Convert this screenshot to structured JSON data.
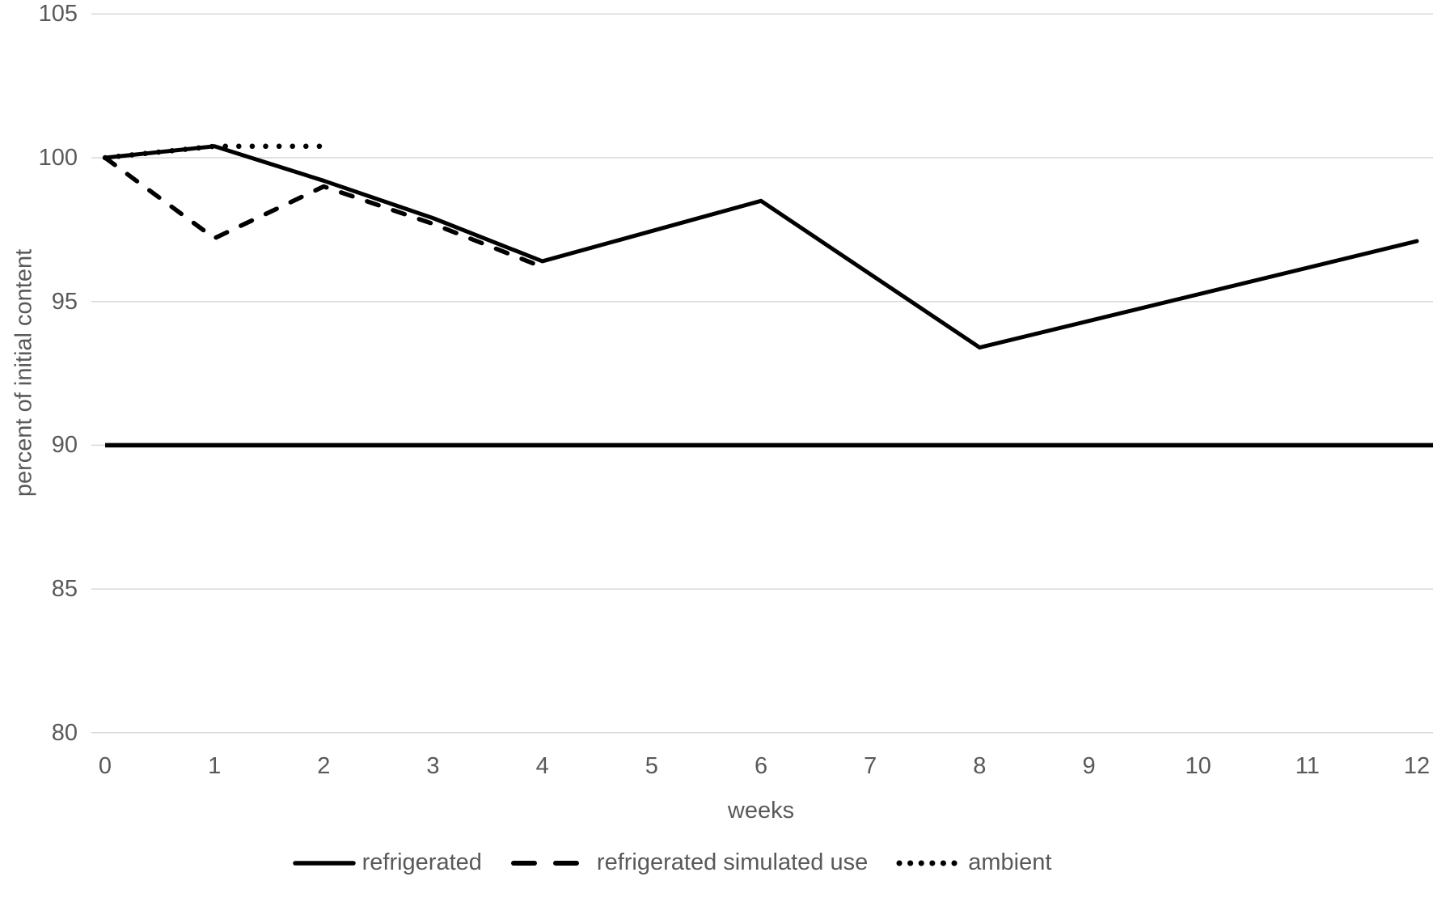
{
  "chart_data": {
    "type": "line",
    "title": "",
    "xlabel": "weeks",
    "ylabel": "percent of initial content",
    "xlim": [
      0,
      12
    ],
    "ylim": [
      80,
      105
    ],
    "x_ticks": [
      0,
      1,
      2,
      3,
      4,
      5,
      6,
      7,
      8,
      9,
      10,
      11,
      12
    ],
    "y_ticks": [
      80,
      85,
      90,
      95,
      100,
      105
    ],
    "grid": "horizontal",
    "legend_position": "bottom",
    "series": [
      {
        "name": "refrigerated",
        "style": "solid",
        "x": [
          0,
          1,
          2,
          3,
          4,
          6,
          8,
          12
        ],
        "values": [
          100,
          100.4,
          99.2,
          97.9,
          96.4,
          98.5,
          93.4,
          97.1
        ]
      },
      {
        "name": "refrigerated simulated use",
        "style": "dashed",
        "x": [
          0,
          1,
          2,
          3,
          4
        ],
        "values": [
          100,
          97.2,
          99.0,
          97.7,
          96.2
        ]
      },
      {
        "name": "ambient",
        "style": "dotted",
        "x": [
          0,
          1,
          2
        ],
        "values": [
          100,
          100.4,
          100.4
        ]
      }
    ],
    "reference_line_y": 90
  },
  "colors": {
    "line": "#000000",
    "label": "#595959",
    "gridline": "#d9d9d9",
    "background": "#ffffff"
  }
}
